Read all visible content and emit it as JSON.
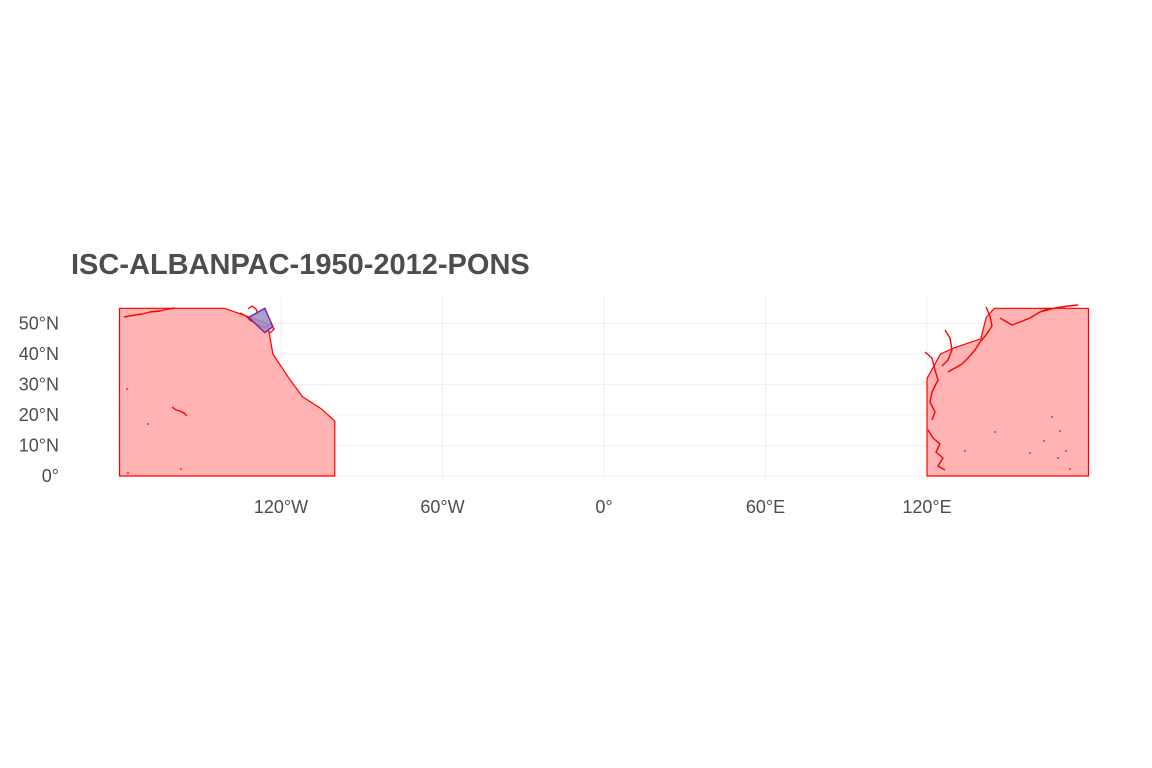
{
  "title": "ISC-ALBANPAC-1950-2012-PONS",
  "chart_data": {
    "type": "map",
    "title": "ISC-ALBANPAC-1950-2012-PONS",
    "xlabel": "",
    "ylabel": "",
    "x_ticks": [
      {
        "value": -120,
        "label": "120°W"
      },
      {
        "value": -60,
        "label": "60°W"
      },
      {
        "value": 0,
        "label": "0°"
      },
      {
        "value": 60,
        "label": "60°E"
      },
      {
        "value": 120,
        "label": "120°E"
      }
    ],
    "y_ticks": [
      {
        "value": 0,
        "label": "0°"
      },
      {
        "value": 10,
        "label": "10°N"
      },
      {
        "value": 20,
        "label": "20°N"
      },
      {
        "value": 30,
        "label": "30°N"
      },
      {
        "value": 40,
        "label": "40°N"
      },
      {
        "value": 50,
        "label": "50°N"
      }
    ],
    "xlim": [
      -180,
      180
    ],
    "ylim": [
      0,
      55
    ],
    "grid": true,
    "stock_area": {
      "fill": "#ffb3b3",
      "stroke": "#ff0000",
      "parts": [
        [
          [
            -180,
            0
          ],
          [
            -180,
            55
          ],
          [
            -141,
            55
          ],
          [
            -125,
            50
          ],
          [
            -123,
            40
          ],
          [
            -117,
            32
          ],
          [
            -112,
            26
          ],
          [
            -105,
            22
          ],
          [
            -100,
            18
          ],
          [
            -100,
            0
          ]
        ],
        [
          [
            120,
            0
          ],
          [
            120,
            32
          ],
          [
            125,
            40
          ],
          [
            130,
            42
          ],
          [
            140,
            45
          ],
          [
            142,
            52
          ],
          [
            145,
            55
          ],
          [
            180,
            55
          ],
          [
            180,
            0
          ]
        ]
      ]
    },
    "assessment_region": {
      "fill": "#9a8fc8",
      "stroke": "#7b1fa2",
      "polygon": [
        [
          -132,
          52
        ],
        [
          -126,
          55
        ],
        [
          -123,
          49
        ],
        [
          -126,
          47
        ]
      ]
    },
    "colors": {
      "grid": "#ebebeb",
      "text": "#4d4d4d"
    }
  }
}
